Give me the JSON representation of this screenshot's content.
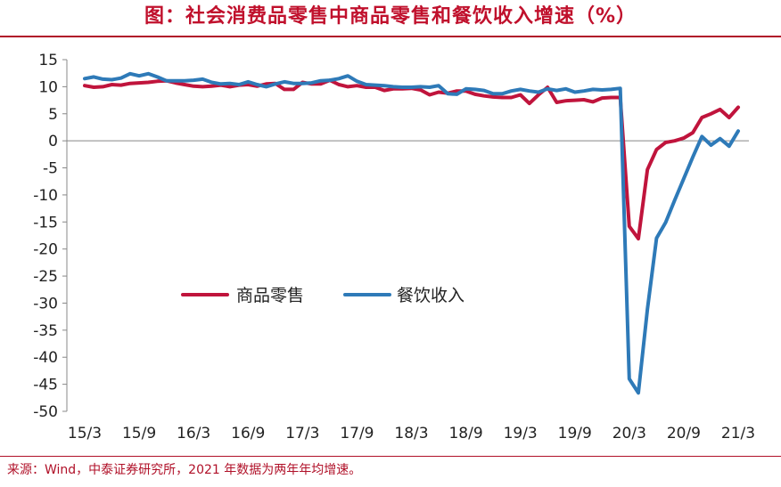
{
  "header": {
    "title": "图：社会消费品零售中商品零售和餐饮收入增速（%）"
  },
  "footer": {
    "source": "来源：Wind，中泰证券研究所，2021 年数据为两年年均增速。"
  },
  "colors": {
    "accent": "#c0102c",
    "retail": "#c0143c",
    "catering": "#2e7ab8"
  },
  "chart_data": {
    "type": "line",
    "title": "图：社会消费品零售中商品零售和餐饮收入增速（%）",
    "xlabel": "",
    "ylabel": "",
    "ylim": [
      -50,
      15
    ],
    "yticks": [
      15,
      10,
      5,
      0,
      -5,
      -10,
      -15,
      -20,
      -25,
      -30,
      -35,
      -40,
      -45,
      -50
    ],
    "xtick_labels": [
      "15/3",
      "15/9",
      "16/3",
      "16/9",
      "17/3",
      "17/9",
      "18/3",
      "18/9",
      "19/3",
      "19/9",
      "20/3",
      "20/9",
      "21/3"
    ],
    "grid": false,
    "legend": "center",
    "x": [
      "15/3",
      "15/4",
      "15/5",
      "15/6",
      "15/7",
      "15/8",
      "15/9",
      "15/10",
      "15/11",
      "15/12",
      "16/1",
      "16/2",
      "16/3",
      "16/4",
      "16/5",
      "16/6",
      "16/7",
      "16/8",
      "16/9",
      "16/10",
      "16/11",
      "16/12",
      "17/1",
      "17/2",
      "17/3",
      "17/4",
      "17/5",
      "17/6",
      "17/7",
      "17/8",
      "17/9",
      "17/10",
      "17/11",
      "17/12",
      "18/1",
      "18/2",
      "18/3",
      "18/4",
      "18/5",
      "18/6",
      "18/7",
      "18/8",
      "18/9",
      "18/10",
      "18/11",
      "18/12",
      "19/1",
      "19/2",
      "19/3",
      "19/4",
      "19/5",
      "19/6",
      "19/7",
      "19/8",
      "19/9",
      "19/10",
      "19/11",
      "19/12",
      "20/1",
      "20/2",
      "20/3",
      "20/4",
      "20/5",
      "20/6",
      "20/7",
      "20/8",
      "20/9",
      "20/10",
      "20/11",
      "20/12",
      "21/1",
      "21/2",
      "21/3"
    ],
    "series": [
      {
        "name": "商品零售",
        "values": [
          10.2,
          9.9,
          10.0,
          10.4,
          10.3,
          10.6,
          10.7,
          10.8,
          11.0,
          11.1,
          10.7,
          10.4,
          10.1,
          10.0,
          10.1,
          10.3,
          10.0,
          10.3,
          10.4,
          10.1,
          10.5,
          10.6,
          9.5,
          9.5,
          10.8,
          10.5,
          10.5,
          11.2,
          10.4,
          10.0,
          10.2,
          9.9,
          9.9,
          9.3,
          9.6,
          9.6,
          9.7,
          9.4,
          8.5,
          9.0,
          8.8,
          9.2,
          9.2,
          8.6,
          8.3,
          8.1,
          8.0,
          8.0,
          8.5,
          6.9,
          8.5,
          9.9,
          7.1,
          7.4,
          7.5,
          7.6,
          7.2,
          7.9,
          8.0,
          8.0,
          -15.8,
          -18.1,
          -5.3,
          -1.6,
          -0.3,
          0.0,
          0.5,
          1.5,
          4.3,
          5.0,
          5.8,
          4.3,
          6.2
        ]
      },
      {
        "name": "餐饮收入",
        "values": [
          11.5,
          11.8,
          11.4,
          11.3,
          11.6,
          12.4,
          12.0,
          12.4,
          11.8,
          11.1,
          11.1,
          11.1,
          11.2,
          11.4,
          10.8,
          10.5,
          10.6,
          10.4,
          10.9,
          10.4,
          10.0,
          10.5,
          10.9,
          10.6,
          10.6,
          10.7,
          11.1,
          11.2,
          11.5,
          12.0,
          11.0,
          10.4,
          10.3,
          10.2,
          10.0,
          9.9,
          9.9,
          10.0,
          9.9,
          10.2,
          8.7,
          8.6,
          9.6,
          9.5,
          9.3,
          8.7,
          8.7,
          9.2,
          9.5,
          9.2,
          9.0,
          9.6,
          9.3,
          9.6,
          9.0,
          9.2,
          9.5,
          9.4,
          9.5,
          9.7,
          -44.0,
          -46.6,
          -31.1,
          -18.0,
          -15.1,
          -11.0,
          -7.0,
          -3.0,
          0.8,
          -0.8,
          0.4,
          -1.0,
          1.8
        ]
      }
    ]
  }
}
